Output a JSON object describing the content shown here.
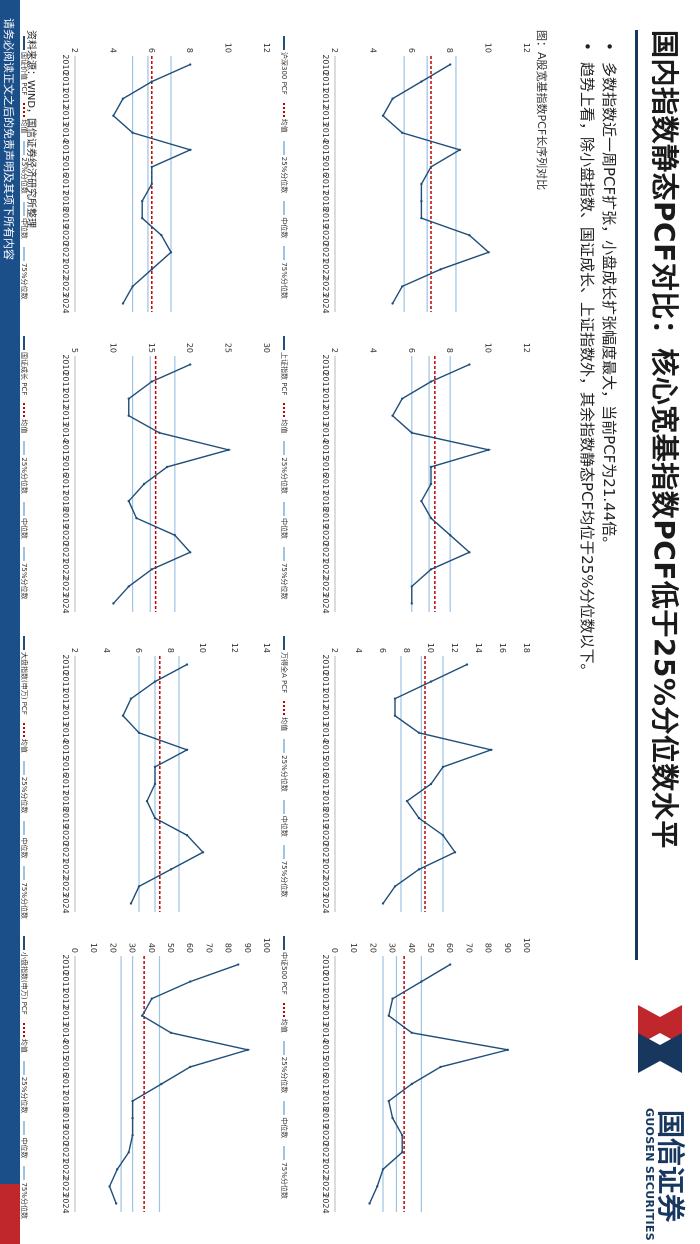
{
  "header": {
    "title": "国内指数静态PCF对比：核心宽基指数PCF低于25%分位数水平",
    "logo_cn": "国信证券",
    "logo_en": "GUOSEN SECURITIES"
  },
  "bullets": [
    "多数指数近一周PCF扩张，小盘成长扩张幅度最大，当前PCF为21.44倍。",
    "趋势上看，除小盘指数、国证成长、上证指数外，其余指数静态PCF均位于25%分位数以下。"
  ],
  "figure_title": "图：A股宽基指数PCF长序列对比",
  "legend_suffix": {
    "mean": "均值",
    "p25": "25%分位数",
    "median": "中位数",
    "p75": "75%分位数"
  },
  "colors": {
    "series": "#1f4e79",
    "mean": "#c00000",
    "quantile": "#9dc3e6",
    "brand": "#17375e"
  },
  "chart_data": [
    {
      "type": "line",
      "legend": "沪深300 PCF",
      "ylim": [
        2,
        12
      ],
      "yticks": [
        2,
        4,
        6,
        8,
        10,
        12
      ],
      "x": [
        "2010",
        "2011",
        "2012",
        "2013",
        "2014",
        "2015",
        "2016",
        "2017",
        "2018",
        "2019",
        "2020",
        "2021",
        "2022",
        "2023",
        "2024"
      ],
      "values": [
        8,
        6.5,
        5,
        4.5,
        5.5,
        8.5,
        7,
        6.5,
        6.5,
        6.5,
        9,
        10,
        7.5,
        5.5,
        5
      ],
      "mean": 7.0,
      "p25": 5.6,
      "median": 6.8,
      "p75": 8.3
    },
    {
      "type": "line",
      "legend": "上证指数 PCF",
      "ylim": [
        2,
        12
      ],
      "yticks": [
        2,
        4,
        6,
        8,
        10,
        12
      ],
      "x": [
        "2010",
        "2011",
        "2012",
        "2013",
        "2014",
        "2015",
        "2016",
        "2017",
        "2018",
        "2019",
        "2020",
        "2021",
        "2022",
        "2023",
        "2024"
      ],
      "values": [
        9,
        7,
        5.5,
        5,
        6,
        10,
        7,
        7,
        6.5,
        7,
        8,
        9,
        7,
        6,
        6
      ],
      "mean": 7.2,
      "p25": 6.0,
      "median": 6.9,
      "p75": 8.0
    },
    {
      "type": "line",
      "legend": "万得全A PCF",
      "ylim": [
        2,
        18
      ],
      "yticks": [
        2,
        4,
        6,
        8,
        10,
        12,
        14,
        16,
        18
      ],
      "x": [
        "2010",
        "2011",
        "2012",
        "2013",
        "2014",
        "2015",
        "2016",
        "2017",
        "2018",
        "2019",
        "2020",
        "2021",
        "2022",
        "2023",
        "2024"
      ],
      "values": [
        13,
        10,
        7,
        7,
        9,
        15,
        11,
        10,
        8,
        9,
        11,
        12,
        9,
        7,
        6
      ],
      "mean": 9.5,
      "p25": 7.5,
      "median": 9.2,
      "p75": 11.0
    },
    {
      "type": "line",
      "legend": "中证500 PCF",
      "ylim": [
        0,
        100
      ],
      "yticks": [
        0,
        10,
        20,
        30,
        40,
        50,
        60,
        70,
        80,
        90,
        100
      ],
      "x": [
        "2010",
        "2011",
        "2012",
        "2013",
        "2014",
        "2015",
        "2016",
        "2017",
        "2018",
        "2019",
        "2020",
        "2021",
        "2022",
        "2023",
        "2024"
      ],
      "values": [
        60,
        45,
        30,
        28,
        40,
        90,
        55,
        40,
        28,
        30,
        35,
        35,
        25,
        22,
        18
      ],
      "mean": 36,
      "p25": 25,
      "median": 32,
      "p75": 45
    },
    {
      "type": "line",
      "legend": "国证价值 PCF",
      "ylim": [
        2,
        12
      ],
      "yticks": [
        2,
        4,
        6,
        8,
        10,
        12
      ],
      "x": [
        "2010",
        "2011",
        "2012",
        "2013",
        "2014",
        "2015",
        "2016",
        "2017",
        "2018",
        "2019",
        "2020",
        "2021",
        "2022",
        "2023",
        "2024"
      ],
      "values": [
        8,
        6,
        4.5,
        4,
        5,
        8,
        6,
        6,
        5.5,
        5.5,
        6.5,
        7,
        6,
        5,
        4.5
      ],
      "mean": 6.0,
      "p25": 5.0,
      "median": 5.8,
      "p75": 7.0
    },
    {
      "type": "line",
      "legend": "国证成长 PCF",
      "ylim": [
        5,
        30
      ],
      "yticks": [
        5,
        10,
        15,
        20,
        25,
        30
      ],
      "x": [
        "2010",
        "2011",
        "2012",
        "2013",
        "2014",
        "2015",
        "2016",
        "2017",
        "2018",
        "2019",
        "2020",
        "2021",
        "2022",
        "2023",
        "2024"
      ],
      "values": [
        20,
        15,
        12,
        12,
        16,
        25,
        17,
        14,
        12,
        13,
        18,
        20,
        15,
        12,
        10
      ],
      "mean": 15.5,
      "p25": 12.5,
      "median": 14.8,
      "p75": 18.0
    },
    {
      "type": "line",
      "legend": "大盘指数(申万) PCF",
      "ylim": [
        2,
        14
      ],
      "yticks": [
        2,
        4,
        6,
        8,
        10,
        12,
        14
      ],
      "x": [
        "2010",
        "2011",
        "2012",
        "2013",
        "2014",
        "2015",
        "2016",
        "2017",
        "2018",
        "2019",
        "2020",
        "2021",
        "2022",
        "2023",
        "2024"
      ],
      "values": [
        9,
        7,
        5.5,
        5,
        6,
        9,
        7,
        7,
        6.5,
        7,
        9,
        10,
        8,
        6,
        5.5
      ],
      "mean": 7.3,
      "p25": 6.0,
      "median": 7.0,
      "p75": 8.5
    },
    {
      "type": "line",
      "legend": "小盘指数(申万) PCF",
      "ylim": [
        0,
        100
      ],
      "yticks": [
        0,
        10,
        20,
        30,
        40,
        50,
        60,
        70,
        80,
        90,
        100
      ],
      "x": [
        "2010",
        "2011",
        "2012",
        "2013",
        "2014",
        "2015",
        "2016",
        "2017",
        "2018",
        "2019",
        "2020",
        "2021",
        "2022",
        "2023",
        "2024"
      ],
      "values": [
        85,
        60,
        40,
        35,
        50,
        90,
        60,
        45,
        30,
        30,
        30,
        28,
        22,
        18,
        21.44
      ],
      "mean": 36,
      "p25": 24,
      "median": 30,
      "p75": 44
    }
  ],
  "source": "资料来源：WIND，国信证券经济研究所整理",
  "footer": "请务必阅读正文之后的免责声明及其项下所有内容"
}
